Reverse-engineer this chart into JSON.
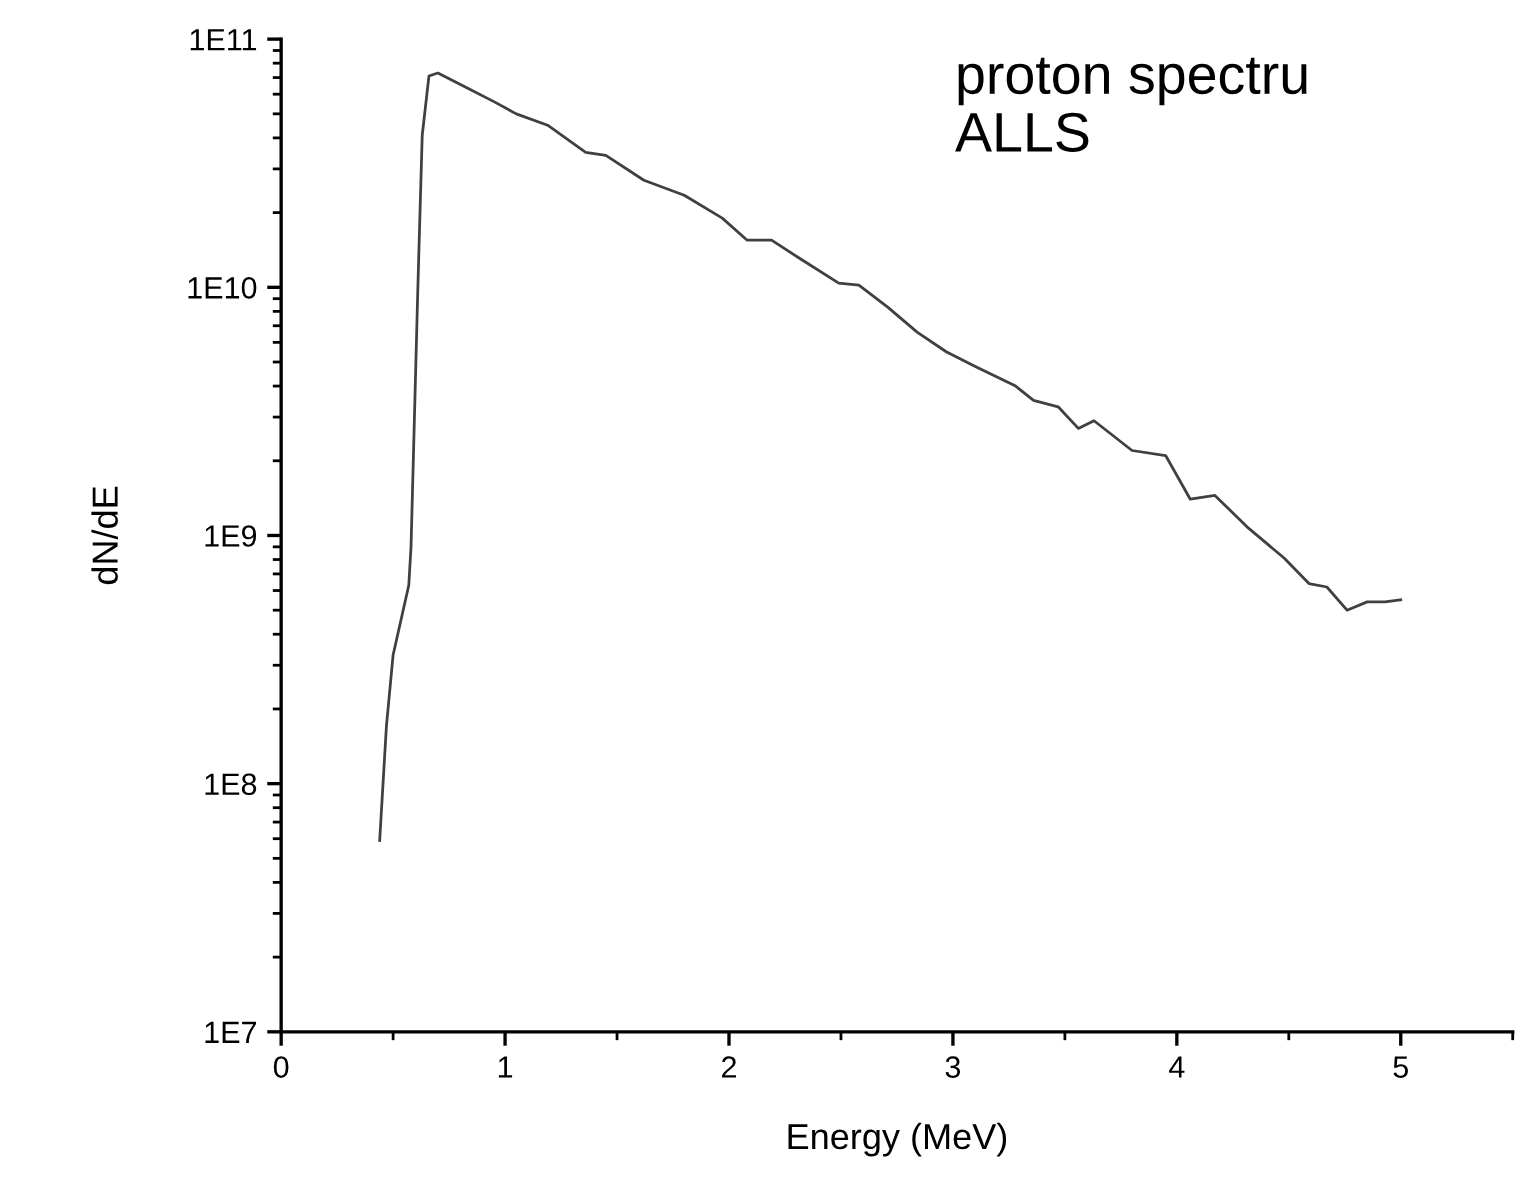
{
  "chart_data": {
    "type": "line",
    "xlabel": "Energy (MeV)",
    "ylabel": "dN/dE",
    "log": "y",
    "xlim": [
      0,
      5.5
    ],
    "xticks": [
      0,
      1,
      2,
      3,
      4,
      5
    ],
    "ylim": [
      10000000.0,
      100000000000.0
    ],
    "yticks": [
      {
        "value": 10000000.0,
        "label": "1E7"
      },
      {
        "value": 100000000.0,
        "label": "1E8"
      },
      {
        "value": 1000000000.0,
        "label": "1E9"
      },
      {
        "value": 10000000000.0,
        "label": "1E10"
      },
      {
        "value": 100000000000.0,
        "label": "1E11"
      }
    ],
    "marker": "none",
    "line_style": "solid",
    "annotations": [
      "proton spectru\nALLS"
    ],
    "series": [
      {
        "color": "#404040",
        "x": [
          0.44,
          0.47,
          0.5,
          0.57,
          0.58,
          0.61,
          0.63,
          0.66,
          0.7,
          0.84,
          0.95,
          1.05,
          1.19,
          1.36,
          1.45,
          1.62,
          1.8,
          1.97,
          2.08,
          2.19,
          2.32,
          2.49,
          2.58,
          2.71,
          2.84,
          2.97,
          3.1,
          3.28,
          3.36,
          3.47,
          3.56,
          3.63,
          3.8,
          3.95,
          4.06,
          4.17,
          4.32,
          4.48,
          4.59,
          4.67,
          4.76,
          4.85,
          4.93,
          5.0
        ],
        "values": [
          59000000.0,
          170000000.0,
          330000000.0,
          630000000.0,
          900000000.0,
          9600000000.0,
          41000000000.0,
          71000000000.0,
          73000000000.0,
          63000000000.0,
          56000000000.0,
          50000000000.0,
          45000000000.0,
          35000000000.0,
          34000000000.0,
          27000000000.0,
          23500000000.0,
          19000000000.0,
          15500000000.0,
          15500000000.0,
          13000000000.0,
          10400000000.0,
          10200000000.0,
          8300000000.0,
          6600000000.0,
          5500000000.0,
          4800000000.0,
          4000000000.0,
          3500000000.0,
          3300000000.0,
          2700000000.0,
          2900000000.0,
          2200000000.0,
          2100000000.0,
          1400000000.0,
          1450000000.0,
          1070000000.0,
          810000000.0,
          640000000.0,
          620000000.0,
          500000000.0,
          540000000.0,
          540000000.0,
          550000000.0
        ]
      }
    ]
  }
}
